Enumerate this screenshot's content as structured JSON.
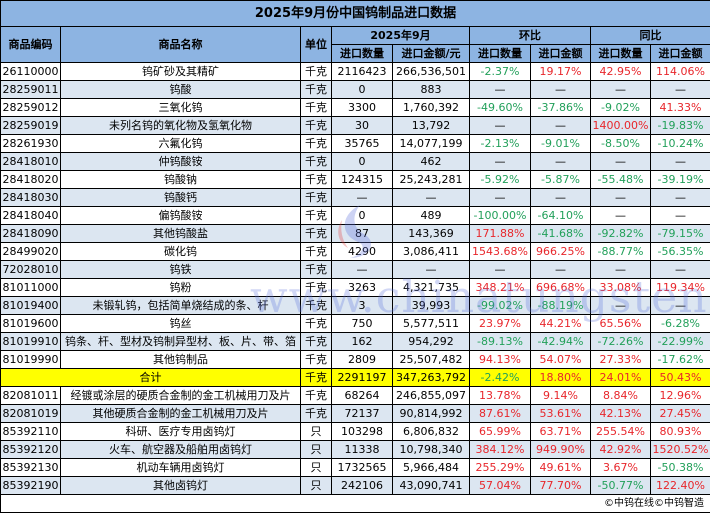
{
  "title": "2025年9月份中国钨制品进口数据",
  "headers": {
    "code": "商品编码",
    "name": "商品名称",
    "unit": "单位",
    "period": "2025年9月",
    "mom": "环比",
    "yoy": "同比",
    "qty": "进口数量",
    "amount": "进口金额/元",
    "amount_short": "进口金额"
  },
  "rows": [
    [
      "26110000",
      "钨矿砂及其精矿",
      "千克",
      "2116423",
      "266,536,501",
      "-2.37%",
      "19.17%",
      "42.95%",
      "114.06%"
    ],
    [
      "28259011",
      "钨酸",
      "千克",
      "0",
      "883",
      "—",
      "—",
      "—",
      "—"
    ],
    [
      "28259012",
      "三氧化钨",
      "千克",
      "3300",
      "1,760,392",
      "-49.60%",
      "-37.86%",
      "-9.02%",
      "41.33%"
    ],
    [
      "28259019",
      "未列名钨的氧化物及氢氧化物",
      "千克",
      "30",
      "13,792",
      "—",
      "—",
      "1400.00%",
      "-19.83%"
    ],
    [
      "28261930",
      "六氟化钨",
      "千克",
      "35765",
      "14,077,199",
      "-2.13%",
      "-9.01%",
      "-8.50%",
      "-10.24%"
    ],
    [
      "28418010",
      "仲钨酸铵",
      "千克",
      "0",
      "462",
      "—",
      "—",
      "—",
      "—"
    ],
    [
      "28418020",
      "钨酸钠",
      "千克",
      "124315",
      "25,243,281",
      "-5.92%",
      "-5.87%",
      "-55.48%",
      "-39.19%"
    ],
    [
      "28418030",
      "钨酸钙",
      "千克",
      "—",
      "—",
      "—",
      "—",
      "—",
      "—"
    ],
    [
      "28418040",
      "偏钨酸铵",
      "千克",
      "0",
      "489",
      "-100.00%",
      "-64.10%",
      "—",
      "—"
    ],
    [
      "28418090",
      "其他钨酸盐",
      "千克",
      "87",
      "143,369",
      "171.88%",
      "-41.68%",
      "-92.82%",
      "-79.15%"
    ],
    [
      "28499020",
      "碳化钨",
      "千克",
      "4290",
      "3,086,411",
      "1543.68%",
      "966.25%",
      "-88.77%",
      "-56.35%"
    ],
    [
      "72028010",
      "钨铁",
      "千克",
      "—",
      "—",
      "—",
      "—",
      "—",
      "—"
    ],
    [
      "81011000",
      "钨粉",
      "千克",
      "3263",
      "4,321,735",
      "348.21%",
      "696.68%",
      "33.08%",
      "119.34%"
    ],
    [
      "81019400",
      "未锻轧钨，包括简单烧结成的条、杆",
      "千克",
      "3",
      "39,993",
      "-99.02%",
      "-88.19%",
      "—",
      "—"
    ],
    [
      "81019600",
      "钨丝",
      "千克",
      "750",
      "5,577,511",
      "23.97%",
      "44.21%",
      "65.56%",
      "-6.28%"
    ],
    [
      "81019910",
      "钨条、杆、型材及钨制异型材、板、片、带、箔",
      "千克",
      "162",
      "954,292",
      "-89.13%",
      "-42.94%",
      "-72.26%",
      "-22.99%"
    ],
    [
      "81019990",
      "其他钨制品",
      "千克",
      "2809",
      "25,507,482",
      "94.13%",
      "54.07%",
      "27.33%",
      "-17.62%"
    ]
  ],
  "total": [
    "合计",
    "千克",
    "2291197",
    "347,263,792",
    "-2.42%",
    "18.80%",
    "24.01%",
    "50.43%"
  ],
  "rows2": [
    [
      "82081011",
      "经镀或涂层的硬质合金制的金工机械用刀及片",
      "千克",
      "68264",
      "246,855,097",
      "13.78%",
      "9.14%",
      "8.84%",
      "12.96%"
    ],
    [
      "82081019",
      "其他硬质合金制的金工机械用刀及片",
      "千克",
      "72137",
      "90,814,992",
      "87.61%",
      "53.61%",
      "42.13%",
      "27.45%"
    ],
    [
      "85392110",
      "科研、医疗专用卤钨灯",
      "只",
      "103298",
      "6,806,832",
      "65.99%",
      "63.71%",
      "255.54%",
      "80.93%"
    ],
    [
      "85392120",
      "火车、航空器及船舶用卤钨灯",
      "只",
      "11338",
      "10,798,340",
      "384.12%",
      "949.90%",
      "42.92%",
      "1520.52%"
    ],
    [
      "85392130",
      "机动车辆用卤钨灯",
      "只",
      "1732565",
      "5,966,484",
      "255.29%",
      "49.61%",
      "3.67%",
      "-50.38%"
    ],
    [
      "85392190",
      "其他卤钨灯",
      "只",
      "242106",
      "43,090,741",
      "57.04%",
      "77.70%",
      "-50.77%",
      "122.40%"
    ]
  ],
  "footer": "©中钨在线©中钨智造",
  "watermark": "www.chinatungsten.com",
  "colors": {
    "header": "#8db4e2",
    "alt_row": "#dce6f1",
    "total_row": "#ffff00",
    "increase": "#e8262b",
    "decrease": "#22a05a"
  }
}
